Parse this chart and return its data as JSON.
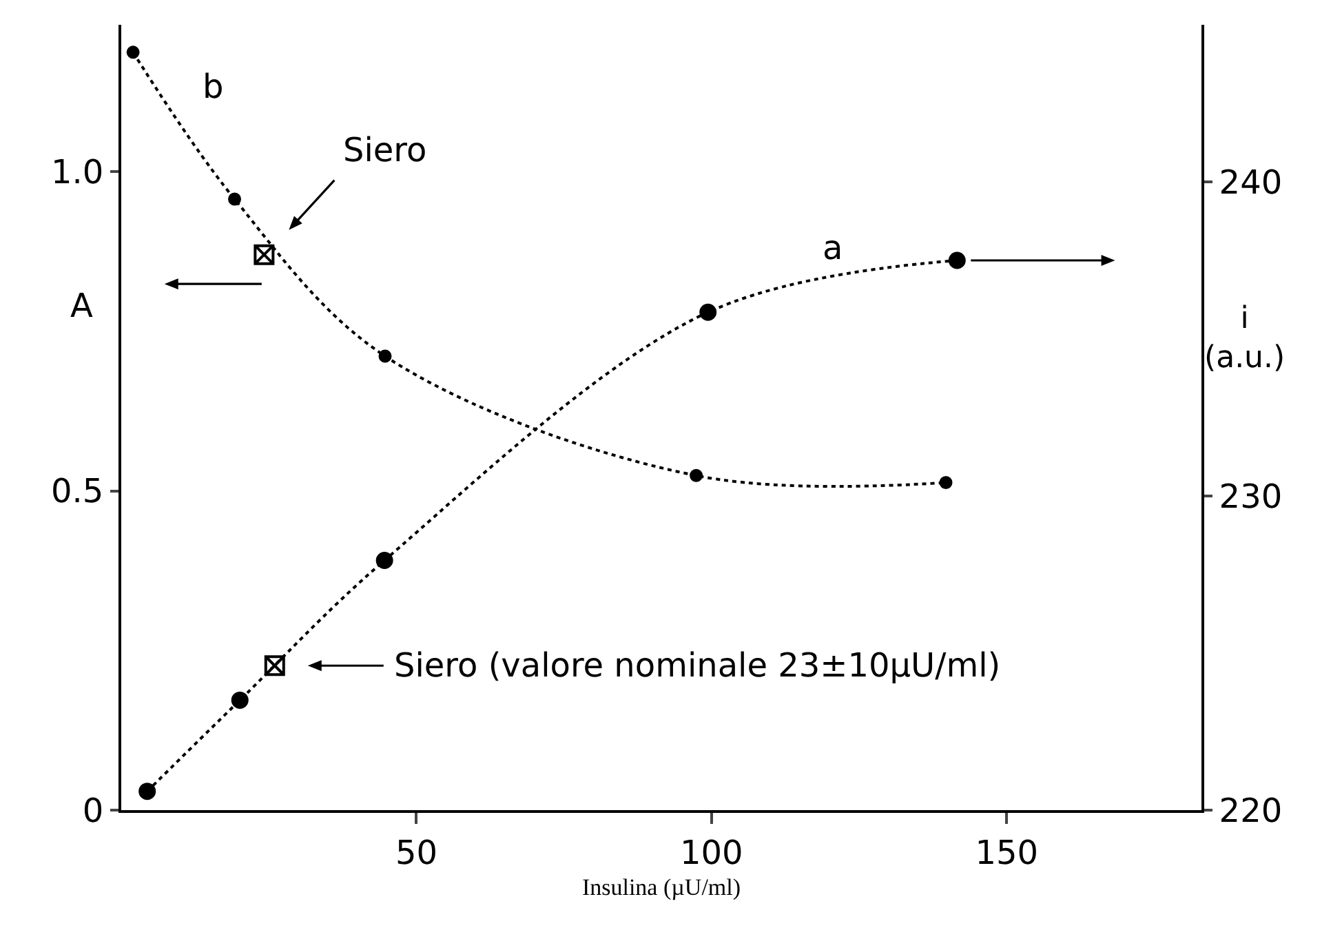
{
  "chart_data": {
    "type": "line",
    "xlabel": "Insulina (µU/ml)",
    "ylabel": "A",
    "y2label": "i\n(a.u.)",
    "xlim": [
      0,
      183
    ],
    "xticks": [
      50,
      100,
      150
    ],
    "ylim": [
      0,
      1.23
    ],
    "yticks": [
      0,
      0.5,
      {
        "value": 1,
        "label": "1.0"
      }
    ],
    "y2lim": [
      220,
      245
    ],
    "y2ticks": [
      220,
      230,
      240
    ],
    "grid": false,
    "legend": false,
    "line_style": "dotted",
    "marker": "circle",
    "series": [
      {
        "name": "b",
        "color": "#000000",
        "x": [
          2.0,
          19.2,
          44.7,
          97.4,
          139.7
        ],
        "values": [
          1.187,
          0.957,
          0.711,
          0.524,
          0.513
        ]
      },
      {
        "name": "a",
        "color": "#000000",
        "axis": "y2",
        "x": [
          4.4,
          20.1,
          44.6,
          99.4,
          141.6
        ],
        "values": [
          220.6,
          223.5,
          227.95,
          235.85,
          237.5
        ]
      },
      {
        "type": "scatter",
        "color": "#000000",
        "marker": "cross",
        "x": [
          24.2
        ],
        "values": [
          0.87
        ]
      },
      {
        "type": "scatter",
        "color": "#000000",
        "marker": "cross",
        "axis": "y2",
        "x": [
          26.0
        ],
        "values": [
          224.6
        ]
      }
    ],
    "annotations": [
      "Siero",
      "Siero (valore nominale 23±10µU/ml)"
    ]
  }
}
